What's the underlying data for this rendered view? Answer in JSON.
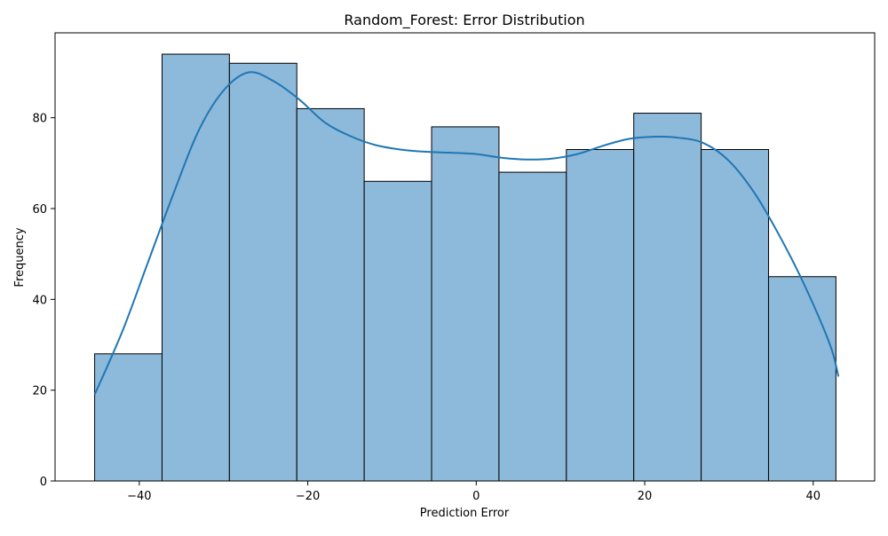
{
  "chart_data": {
    "type": "histogram",
    "title": "Random_Forest: Error Distribution",
    "xlabel": "Prediction Error",
    "ylabel": "Frequency",
    "xlim": [
      -50,
      47.3
    ],
    "ylim": [
      0,
      98.7
    ],
    "xticks": [
      -40,
      -20,
      0,
      20,
      40
    ],
    "yticks": [
      0,
      20,
      40,
      60,
      80
    ],
    "xtick_labels": [
      "−40",
      "−20",
      "0",
      "20",
      "40"
    ],
    "ytick_labels": [
      "0",
      "20",
      "40",
      "60",
      "80"
    ],
    "grid": false,
    "bins": [
      {
        "x0": -45.3,
        "x1": -37.3,
        "count": 28
      },
      {
        "x0": -37.3,
        "x1": -29.3,
        "count": 94
      },
      {
        "x0": -29.3,
        "x1": -21.3,
        "count": 92
      },
      {
        "x0": -21.3,
        "x1": -13.3,
        "count": 82
      },
      {
        "x0": -13.3,
        "x1": -5.3,
        "count": 66
      },
      {
        "x0": -5.3,
        "x1": 2.7,
        "count": 78
      },
      {
        "x0": 2.7,
        "x1": 10.7,
        "count": 68
      },
      {
        "x0": 10.7,
        "x1": 18.7,
        "count": 73
      },
      {
        "x0": 18.7,
        "x1": 26.7,
        "count": 81
      },
      {
        "x0": 26.7,
        "x1": 34.7,
        "count": 73
      },
      {
        "x0": 34.7,
        "x1": 42.7,
        "count": 45
      }
    ],
    "kde": {
      "x": [
        -45.3,
        -42,
        -39,
        -36,
        -33,
        -30,
        -27,
        -24,
        -21,
        -18,
        -15,
        -12,
        -9,
        -6,
        -3,
        0,
        3,
        6,
        9,
        12,
        15,
        18,
        21,
        24,
        27,
        30,
        33,
        36,
        39,
        42,
        43
      ],
      "y": [
        19,
        33,
        48,
        63,
        77,
        86,
        90,
        88,
        84,
        79,
        76,
        74,
        73,
        72.5,
        72.3,
        72,
        71.2,
        70.8,
        71,
        72,
        73.8,
        75.3,
        75.8,
        75.6,
        74.4,
        70.5,
        63.5,
        54,
        43,
        30,
        23
      ]
    },
    "colors": {
      "bar_fill": "#8db9db",
      "bar_edge": "#000000",
      "kde_line": "#1f77b4"
    }
  }
}
